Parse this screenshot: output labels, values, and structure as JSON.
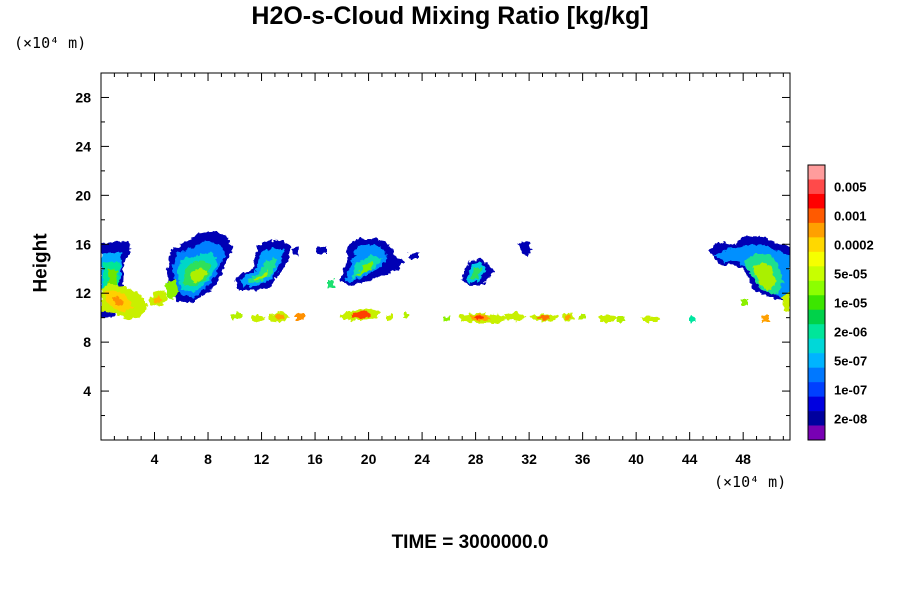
{
  "chart_data": {
    "type": "heatmap",
    "title": "H2O-s-Cloud Mixing Ratio [kg/kg]",
    "ylabel": "Height",
    "y_scale_label": "(×10⁴ m)",
    "x_scale_label": "(×10⁴ m)",
    "footer": "TIME = 3000000.0",
    "xlim": [
      0,
      51.5
    ],
    "ylim": [
      0,
      30
    ],
    "x_ticks": [
      4,
      8,
      12,
      16,
      20,
      24,
      28,
      32,
      36,
      40,
      44,
      48
    ],
    "y_ticks": [
      4,
      8,
      12,
      16,
      20,
      24,
      28
    ],
    "colorbar": {
      "labels": [
        "0.005",
        "0.001",
        "0.0002",
        "5e-05",
        "1e-05",
        "2e-06",
        "5e-07",
        "1e-07",
        "2e-08"
      ],
      "colors": [
        "#ff9c9c",
        "#ff4a4a",
        "#ff0000",
        "#ff5a00",
        "#ffa000",
        "#ffd800",
        "#f6ff00",
        "#c8ff00",
        "#8cff00",
        "#3ce600",
        "#00d24a",
        "#00e69a",
        "#00d8d8",
        "#00b4ff",
        "#0078ff",
        "#0040ff",
        "#0000e0",
        "#00009e",
        "#7800b4"
      ]
    },
    "cloud_regions": [
      {
        "x": [
          0.0,
          2.3
        ],
        "y": [
          10.5,
          16.0
        ],
        "level": "2e-06 to 5e-05"
      },
      {
        "x": [
          5.2,
          9.7
        ],
        "y": [
          12.0,
          17.0
        ],
        "level": "2e-06 to 5e-05"
      },
      {
        "x": [
          9.8,
          14.4
        ],
        "y": [
          12.0,
          16.2
        ],
        "level": "2e-06 to 1e-05"
      },
      {
        "x": [
          17.2,
          22.9
        ],
        "y": [
          12.5,
          16.3
        ],
        "level": "2e-06 to 1e-05"
      },
      {
        "x": [
          26.7,
          29.7
        ],
        "y": [
          12.5,
          14.5
        ],
        "level": "2e-06 to 5e-06"
      },
      {
        "x": [
          31.0,
          31.9
        ],
        "y": [
          15.0,
          16.2
        ],
        "level": "2e-08 to 1e-07"
      },
      {
        "x": [
          45.8,
          51.5
        ],
        "y": [
          11.5,
          16.3
        ],
        "level": "2e-06 to 5e-05"
      },
      {
        "x": [
          0.0,
          7.5
        ],
        "y": [
          10.0,
          13.0
        ],
        "level": "5e-05 to 0.0002"
      },
      {
        "x": [
          10.0,
          41.0
        ],
        "y": [
          9.6,
          10.5
        ],
        "level": "1e-05 to 0.001"
      }
    ]
  }
}
